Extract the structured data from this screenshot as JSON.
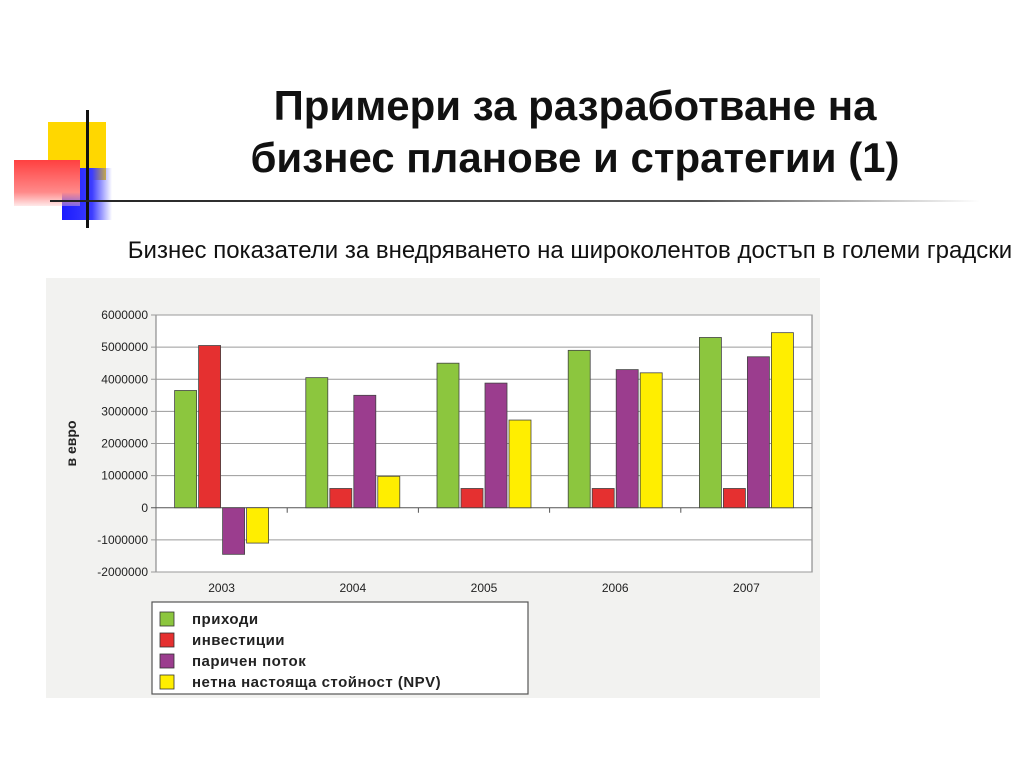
{
  "slide": {
    "title_line1": "Примери за разработване на",
    "title_line2": "бизнес планове и стратегии (1)",
    "subtitle": "Бизнес показатели за внедряването на широколентов достъп в големи градски кварталаи"
  },
  "colors": {
    "deco_yellow": "#ffd700",
    "deco_red": "#ff3b3b",
    "deco_blue": "#1a1aff",
    "grid": "#9a9a9a",
    "background_scan": "#f2f2f0"
  },
  "chart_data": {
    "type": "bar",
    "title": "",
    "xlabel": "",
    "ylabel": "в евро",
    "categories": [
      "2003",
      "2004",
      "2005",
      "2006",
      "2007"
    ],
    "ylim": [
      -2000000,
      6000000
    ],
    "yticks": [
      "6000000",
      "5000000",
      "4000000",
      "3000000",
      "2000000",
      "1000000",
      "0",
      "-1000000",
      "-2000000"
    ],
    "grid": true,
    "legend_position": "bottom-left",
    "series": [
      {
        "name": "приходи",
        "color": "#8cc63e",
        "values": [
          3650000,
          4050000,
          4500000,
          4900000,
          5300000
        ]
      },
      {
        "name": "инвестиции",
        "color": "#e53030",
        "values": [
          5050000,
          600000,
          600000,
          600000,
          600000
        ]
      },
      {
        "name": "паричен поток",
        "color": "#9b3d8e",
        "values": [
          -1450000,
          3500000,
          3880000,
          4300000,
          4700000
        ]
      },
      {
        "name": "нетна настояща стойност (NPV)",
        "color": "#ffee00",
        "values": [
          -1100000,
          980000,
          2730000,
          4200000,
          5450000
        ]
      }
    ]
  }
}
